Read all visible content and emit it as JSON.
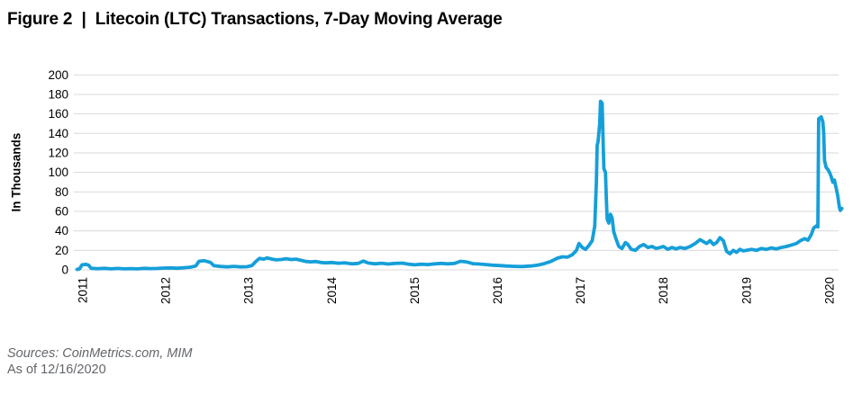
{
  "figure": {
    "title": "Figure 2  |  Litecoin (LTC) Transactions, 7-Day Moving Average"
  },
  "footer": {
    "sources": "Sources: CoinMetrics.com, MIM",
    "as_of": "As of 12/16/2020"
  },
  "chart_data": {
    "type": "line",
    "title": "Figure 2 | Litecoin (LTC) Transactions, 7-Day Moving Average",
    "xlabel": "",
    "ylabel": "In Thousands",
    "x_ticks": [
      2011,
      2012,
      2013,
      2014,
      2015,
      2016,
      2017,
      2018,
      2019,
      2020
    ],
    "y_ticks": [
      0,
      20,
      40,
      60,
      80,
      100,
      120,
      140,
      160,
      180,
      200
    ],
    "ylim": [
      0,
      200
    ],
    "xlim": [
      2010.9,
      2020.2
    ],
    "grid": "horizontal",
    "legend": "none",
    "line_color": "#159fd9",
    "grid_color": "#d9d9d9",
    "tick_color": "#000000",
    "series": [
      {
        "name": "LTC transactions, 7-day moving average (thousands)",
        "points": [
          [
            2010.93,
            0.5
          ],
          [
            2010.96,
            1.0
          ],
          [
            2010.99,
            5.2
          ],
          [
            2011.04,
            5.6
          ],
          [
            2011.07,
            4.8
          ],
          [
            2011.1,
            1.6
          ],
          [
            2011.18,
            1.2
          ],
          [
            2011.26,
            1.6
          ],
          [
            2011.34,
            1.0
          ],
          [
            2011.42,
            1.5
          ],
          [
            2011.5,
            1.0
          ],
          [
            2011.58,
            1.3
          ],
          [
            2011.66,
            1.0
          ],
          [
            2011.74,
            1.6
          ],
          [
            2011.82,
            1.3
          ],
          [
            2011.9,
            1.5
          ],
          [
            2011.98,
            1.8
          ],
          [
            2012.06,
            2.0
          ],
          [
            2012.14,
            1.7
          ],
          [
            2012.22,
            2.2
          ],
          [
            2012.3,
            2.8
          ],
          [
            2012.36,
            4.0
          ],
          [
            2012.4,
            8.8
          ],
          [
            2012.46,
            9.4
          ],
          [
            2012.5,
            8.6
          ],
          [
            2012.54,
            7.6
          ],
          [
            2012.58,
            4.2
          ],
          [
            2012.66,
            3.5
          ],
          [
            2012.74,
            3.0
          ],
          [
            2012.82,
            3.6
          ],
          [
            2012.9,
            3.0
          ],
          [
            2012.98,
            3.2
          ],
          [
            2013.04,
            4.5
          ],
          [
            2013.09,
            9.0
          ],
          [
            2013.13,
            11.8
          ],
          [
            2013.18,
            11.0
          ],
          [
            2013.22,
            12.3
          ],
          [
            2013.27,
            11.2
          ],
          [
            2013.33,
            10.2
          ],
          [
            2013.39,
            10.6
          ],
          [
            2013.45,
            11.4
          ],
          [
            2013.51,
            10.6
          ],
          [
            2013.57,
            11.0
          ],
          [
            2013.63,
            9.8
          ],
          [
            2013.69,
            8.6
          ],
          [
            2013.75,
            8.2
          ],
          [
            2013.81,
            8.6
          ],
          [
            2013.87,
            7.6
          ],
          [
            2013.93,
            7.2
          ],
          [
            2014.0,
            7.6
          ],
          [
            2014.08,
            6.8
          ],
          [
            2014.16,
            7.2
          ],
          [
            2014.24,
            6.2
          ],
          [
            2014.32,
            6.6
          ],
          [
            2014.38,
            9.0
          ],
          [
            2014.44,
            7.0
          ],
          [
            2014.52,
            6.2
          ],
          [
            2014.6,
            6.8
          ],
          [
            2014.68,
            6.0
          ],
          [
            2014.76,
            6.6
          ],
          [
            2014.85,
            6.9
          ],
          [
            2014.93,
            5.8
          ],
          [
            2015.0,
            5.2
          ],
          [
            2015.08,
            5.8
          ],
          [
            2015.16,
            5.4
          ],
          [
            2015.24,
            6.2
          ],
          [
            2015.32,
            6.6
          ],
          [
            2015.4,
            6.2
          ],
          [
            2015.48,
            6.6
          ],
          [
            2015.55,
            8.8
          ],
          [
            2015.62,
            8.2
          ],
          [
            2015.7,
            6.4
          ],
          [
            2015.78,
            6.0
          ],
          [
            2015.86,
            5.4
          ],
          [
            2015.94,
            4.8
          ],
          [
            2016.02,
            4.4
          ],
          [
            2016.1,
            4.0
          ],
          [
            2016.2,
            3.6
          ],
          [
            2016.3,
            3.4
          ],
          [
            2016.4,
            4.0
          ],
          [
            2016.48,
            4.8
          ],
          [
            2016.56,
            6.4
          ],
          [
            2016.64,
            8.6
          ],
          [
            2016.72,
            12.0
          ],
          [
            2016.78,
            13.4
          ],
          [
            2016.84,
            13.0
          ],
          [
            2016.9,
            15.5
          ],
          [
            2016.95,
            20.0
          ],
          [
            2016.98,
            27.0
          ],
          [
            2017.02,
            23.0
          ],
          [
            2017.06,
            21.0
          ],
          [
            2017.1,
            25.0
          ],
          [
            2017.14,
            30.0
          ],
          [
            2017.17,
            45.0
          ],
          [
            2017.19,
            90.0
          ],
          [
            2017.2,
            128.0
          ],
          [
            2017.21,
            131.0
          ],
          [
            2017.23,
            150.0
          ],
          [
            2017.24,
            173.0
          ],
          [
            2017.26,
            171.0
          ],
          [
            2017.27,
            135.0
          ],
          [
            2017.28,
            104.0
          ],
          [
            2017.3,
            100.0
          ],
          [
            2017.31,
            72.0
          ],
          [
            2017.32,
            52.0
          ],
          [
            2017.34,
            48.0
          ],
          [
            2017.36,
            57.0
          ],
          [
            2017.38,
            53.0
          ],
          [
            2017.4,
            39.0
          ],
          [
            2017.43,
            31.0
          ],
          [
            2017.46,
            24.0
          ],
          [
            2017.5,
            22.0
          ],
          [
            2017.54,
            28.0
          ],
          [
            2017.57,
            26.0
          ],
          [
            2017.61,
            21.0
          ],
          [
            2017.66,
            20.0
          ],
          [
            2017.71,
            24.0
          ],
          [
            2017.76,
            26.0
          ],
          [
            2017.81,
            23.0
          ],
          [
            2017.86,
            24.0
          ],
          [
            2017.91,
            22.0
          ],
          [
            2017.96,
            23.0
          ],
          [
            2018.0,
            24.0
          ],
          [
            2018.05,
            21.0
          ],
          [
            2018.1,
            23.0
          ],
          [
            2018.15,
            21.5
          ],
          [
            2018.2,
            23.0
          ],
          [
            2018.26,
            22.0
          ],
          [
            2018.32,
            24.0
          ],
          [
            2018.38,
            27.0
          ],
          [
            2018.44,
            31.0
          ],
          [
            2018.48,
            29.0
          ],
          [
            2018.52,
            27.0
          ],
          [
            2018.56,
            30.0
          ],
          [
            2018.6,
            26.0
          ],
          [
            2018.64,
            28.0
          ],
          [
            2018.68,
            33.0
          ],
          [
            2018.72,
            30.0
          ],
          [
            2018.76,
            19.0
          ],
          [
            2018.8,
            16.5
          ],
          [
            2018.84,
            20.0
          ],
          [
            2018.88,
            18.0
          ],
          [
            2018.92,
            21.0
          ],
          [
            2018.96,
            19.5
          ],
          [
            2019.0,
            20.0
          ],
          [
            2019.06,
            21.0
          ],
          [
            2019.12,
            20.0
          ],
          [
            2019.18,
            22.0
          ],
          [
            2019.24,
            21.0
          ],
          [
            2019.3,
            22.5
          ],
          [
            2019.36,
            21.5
          ],
          [
            2019.42,
            23.0
          ],
          [
            2019.48,
            24.0
          ],
          [
            2019.54,
            25.5
          ],
          [
            2019.6,
            27.0
          ],
          [
            2019.65,
            30.0
          ],
          [
            2019.7,
            32.0
          ],
          [
            2019.74,
            30.5
          ],
          [
            2019.78,
            36.0
          ],
          [
            2019.81,
            43.0
          ],
          [
            2019.84,
            45.0
          ],
          [
            2019.86,
            44.0
          ],
          [
            2019.87,
            155.0
          ],
          [
            2019.9,
            157.0
          ],
          [
            2019.92,
            152.0
          ],
          [
            2019.93,
            140.0
          ],
          [
            2019.94,
            112.0
          ],
          [
            2019.96,
            105.0
          ],
          [
            2019.98,
            103.0
          ],
          [
            2020.0,
            100.0
          ],
          [
            2020.02,
            96.0
          ],
          [
            2020.04,
            90.0
          ],
          [
            2020.06,
            92.0
          ],
          [
            2020.08,
            84.0
          ],
          [
            2020.1,
            76.0
          ],
          [
            2020.11,
            70.0
          ],
          [
            2020.12,
            64.0
          ],
          [
            2020.13,
            61.0
          ],
          [
            2020.15,
            63.0
          ]
        ]
      }
    ]
  }
}
